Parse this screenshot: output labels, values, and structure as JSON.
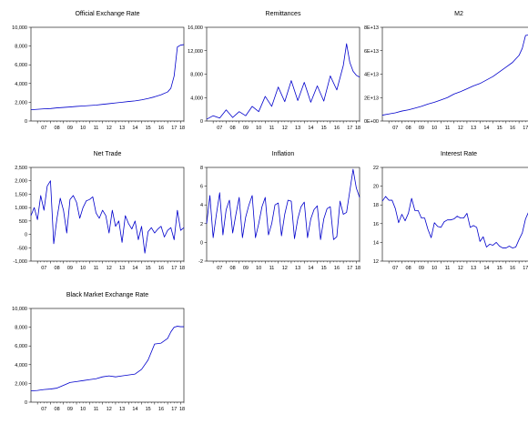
{
  "figure": {
    "x_tick_labels": [
      "07",
      "08",
      "09",
      "10",
      "11",
      "12",
      "13",
      "14",
      "15",
      "16",
      "17",
      "18"
    ],
    "line_color": "#0000cc"
  },
  "chart_data": [
    {
      "id": "official-exchange-rate",
      "type": "line",
      "title": "Official Exchange Rate",
      "xlabel": "",
      "ylabel": "",
      "x_range": [
        2006.5,
        2018.25
      ],
      "ylim": [
        0,
        10000
      ],
      "y_ticks": [
        0,
        2000,
        4000,
        6000,
        8000,
        10000
      ],
      "y_tick_labels": [
        "0",
        "2,000",
        "4,000",
        "6,000",
        "8,000",
        "10,000"
      ],
      "grid": false,
      "series": [
        {
          "x": [
            2006.5,
            2007.0,
            2007.5,
            2008.0,
            2008.5,
            2009.0,
            2009.5,
            2010.0,
            2010.5,
            2011.0,
            2011.5,
            2012.0,
            2012.5,
            2013.0,
            2013.5,
            2014.0,
            2014.5,
            2015.0,
            2015.5,
            2016.0,
            2016.5,
            2017.0,
            2017.25,
            2017.5,
            2017.75,
            2018.0,
            2018.25
          ],
          "y": [
            1200,
            1250,
            1300,
            1330,
            1400,
            1450,
            1500,
            1560,
            1600,
            1650,
            1700,
            1780,
            1850,
            1930,
            2000,
            2080,
            2150,
            2260,
            2400,
            2580,
            2800,
            3100,
            3500,
            4800,
            7900,
            8100,
            8150
          ]
        }
      ]
    },
    {
      "id": "remittances",
      "type": "line",
      "title": "Remittances",
      "xlabel": "",
      "ylabel": "",
      "x_range": [
        2006.5,
        2018.25
      ],
      "ylim": [
        0,
        16000
      ],
      "y_ticks": [
        0,
        4000,
        8000,
        12000,
        16000
      ],
      "y_tick_labels": [
        "0",
        "4,000",
        "8,000",
        "12,000",
        "16,000"
      ],
      "grid": false,
      "series": [
        {
          "x": [
            2006.5,
            2007.0,
            2007.5,
            2008.0,
            2008.5,
            2009.0,
            2009.5,
            2010.0,
            2010.5,
            2011.0,
            2011.5,
            2012.0,
            2012.5,
            2013.0,
            2013.5,
            2014.0,
            2014.5,
            2015.0,
            2015.5,
            2016.0,
            2016.5,
            2017.0,
            2017.25,
            2017.5,
            2017.75,
            2018.0,
            2018.25
          ],
          "y": [
            300,
            900,
            500,
            1900,
            600,
            1600,
            900,
            2500,
            1600,
            4200,
            2500,
            5800,
            3300,
            6900,
            3500,
            6600,
            3200,
            6000,
            3400,
            7700,
            5300,
            9500,
            13200,
            10000,
            8500,
            7800,
            7500
          ]
        }
      ]
    },
    {
      "id": "m2",
      "type": "line",
      "title": "M2",
      "xlabel": "",
      "ylabel": "",
      "x_range": [
        2006.5,
        2018.25
      ],
      "ylim": [
        0,
        80000000000000.0
      ],
      "y_ticks": [
        0,
        20000000000000.0,
        40000000000000.0,
        60000000000000.0,
        80000000000000.0
      ],
      "y_tick_labels": [
        "0E+00",
        "2E+13",
        "4E+13",
        "6E+13",
        "8E+13"
      ],
      "grid": false,
      "series": [
        {
          "x": [
            2006.5,
            2007.0,
            2007.5,
            2008.0,
            2008.5,
            2009.0,
            2009.5,
            2010.0,
            2010.5,
            2011.0,
            2011.5,
            2012.0,
            2012.5,
            2013.0,
            2013.5,
            2014.0,
            2014.5,
            2015.0,
            2015.5,
            2016.0,
            2016.5,
            2017.0,
            2017.25,
            2017.5,
            2017.75,
            2018.0,
            2018.25
          ],
          "y": [
            5000000000000.0,
            6000000000000.0,
            7000000000000.0,
            8500000000000.0,
            9500000000000.0,
            11000000000000.0,
            12500000000000.0,
            14500000000000.0,
            16000000000000.0,
            18000000000000.0,
            20000000000000.0,
            23000000000000.0,
            25000000000000.0,
            27500000000000.0,
            30000000000000.0,
            32000000000000.0,
            35000000000000.0,
            38000000000000.0,
            42000000000000.0,
            46000000000000.0,
            50000000000000.0,
            56000000000000.0,
            62000000000000.0,
            73000000000000.0,
            73500000000000.0,
            74000000000000.0,
            74000000000000.0
          ]
        }
      ]
    },
    {
      "id": "net-trade",
      "type": "line",
      "title": "Net Trade",
      "xlabel": "",
      "ylabel": "",
      "x_range": [
        2006.5,
        2018.25
      ],
      "ylim": [
        -1000,
        2500
      ],
      "y_ticks": [
        -1000,
        -500,
        0,
        500,
        1000,
        1500,
        2000,
        2500
      ],
      "y_tick_labels": [
        "-1,000",
        "-500",
        "0",
        "500",
        "1,000",
        "1,500",
        "2,000",
        "2,500"
      ],
      "grid": false,
      "series": [
        {
          "x": [
            2006.5,
            2006.75,
            2007.0,
            2007.25,
            2007.5,
            2007.75,
            2008.0,
            2008.25,
            2008.5,
            2008.75,
            2009.0,
            2009.25,
            2009.5,
            2009.75,
            2010.0,
            2010.25,
            2010.5,
            2010.75,
            2011.0,
            2011.25,
            2011.5,
            2011.75,
            2012.0,
            2012.25,
            2012.5,
            2012.75,
            2013.0,
            2013.25,
            2013.5,
            2013.75,
            2014.0,
            2014.25,
            2014.5,
            2014.75,
            2015.0,
            2015.25,
            2015.5,
            2015.75,
            2016.0,
            2016.25,
            2016.5,
            2016.75,
            2017.0,
            2017.25,
            2017.5,
            2017.75,
            2018.0,
            2018.25
          ],
          "y": [
            700,
            1000,
            550,
            1450,
            900,
            1800,
            2000,
            -350,
            600,
            1350,
            900,
            50,
            1300,
            1450,
            1200,
            600,
            1000,
            1250,
            1300,
            1400,
            800,
            600,
            900,
            700,
            50,
            900,
            300,
            500,
            -300,
            700,
            400,
            200,
            500,
            -200,
            300,
            -700,
            100,
            250,
            50,
            200,
            300,
            -100,
            150,
            250,
            -200,
            900,
            150,
            250
          ]
        }
      ]
    },
    {
      "id": "inflation",
      "type": "line",
      "title": "Inflation",
      "xlabel": "",
      "ylabel": "",
      "x_range": [
        2006.5,
        2018.25
      ],
      "ylim": [
        -2,
        8
      ],
      "y_ticks": [
        -2,
        0,
        2,
        4,
        6,
        8
      ],
      "y_tick_labels": [
        "-2",
        "0",
        "2",
        "4",
        "6",
        "8"
      ],
      "grid": false,
      "series": [
        {
          "x": [
            2006.5,
            2006.75,
            2007.0,
            2007.25,
            2007.5,
            2007.75,
            2008.0,
            2008.25,
            2008.5,
            2008.75,
            2009.0,
            2009.25,
            2009.5,
            2009.75,
            2010.0,
            2010.25,
            2010.5,
            2010.75,
            2011.0,
            2011.25,
            2011.5,
            2011.75,
            2012.0,
            2012.25,
            2012.5,
            2012.75,
            2013.0,
            2013.25,
            2013.5,
            2013.75,
            2014.0,
            2014.25,
            2014.5,
            2014.75,
            2015.0,
            2015.25,
            2015.5,
            2015.75,
            2016.0,
            2016.25,
            2016.5,
            2016.75,
            2017.0,
            2017.25,
            2017.5,
            2017.75,
            2018.0,
            2018.25
          ],
          "y": [
            2.0,
            5.0,
            0.5,
            3.0,
            5.3,
            0.8,
            3.5,
            4.5,
            1.0,
            3.0,
            4.8,
            0.5,
            2.7,
            4.0,
            5.0,
            0.5,
            2.0,
            3.8,
            4.8,
            0.8,
            2.0,
            4.0,
            4.2,
            0.7,
            3.0,
            4.5,
            4.4,
            0.4,
            2.5,
            3.8,
            4.3,
            0.5,
            2.5,
            3.5,
            3.9,
            0.3,
            2.5,
            3.6,
            3.8,
            0.3,
            0.6,
            4.4,
            3.0,
            3.2,
            5.5,
            7.8,
            5.8,
            4.8
          ]
        }
      ]
    },
    {
      "id": "interest-rate",
      "type": "line",
      "title": "Interest Rate",
      "xlabel": "",
      "ylabel": "",
      "x_range": [
        2006.5,
        2018.25
      ],
      "ylim": [
        12,
        22
      ],
      "y_ticks": [
        12,
        14,
        16,
        18,
        20,
        22
      ],
      "y_tick_labels": [
        "12",
        "14",
        "16",
        "18",
        "20",
        "22"
      ],
      "grid": false,
      "series": [
        {
          "x": [
            2006.5,
            2006.75,
            2007.0,
            2007.25,
            2007.5,
            2007.75,
            2008.0,
            2008.25,
            2008.5,
            2008.75,
            2009.0,
            2009.25,
            2009.5,
            2009.75,
            2010.0,
            2010.25,
            2010.5,
            2010.75,
            2011.0,
            2011.25,
            2011.5,
            2011.75,
            2012.0,
            2012.25,
            2012.5,
            2012.75,
            2013.0,
            2013.25,
            2013.5,
            2013.75,
            2014.0,
            2014.25,
            2014.5,
            2014.75,
            2015.0,
            2015.25,
            2015.5,
            2015.75,
            2016.0,
            2016.25,
            2016.5,
            2016.75,
            2017.0,
            2017.25,
            2017.5,
            2017.75,
            2018.0,
            2018.25
          ],
          "y": [
            18.4,
            18.9,
            18.5,
            18.5,
            17.6,
            16.1,
            17.0,
            16.3,
            17.1,
            18.7,
            17.4,
            17.4,
            16.6,
            16.6,
            15.4,
            14.5,
            16.1,
            15.7,
            15.6,
            16.2,
            16.4,
            16.4,
            16.5,
            16.8,
            16.6,
            16.6,
            17.1,
            15.6,
            15.8,
            15.6,
            14.1,
            14.6,
            13.5,
            13.8,
            13.7,
            14.0,
            13.6,
            13.4,
            13.4,
            13.6,
            13.4,
            13.5,
            14.3,
            15.0,
            16.5,
            17.3,
            18.5,
            20.1
          ]
        }
      ]
    },
    {
      "id": "black-market-exchange-rate",
      "type": "line",
      "title": "Black Market Exchange Rate",
      "xlabel": "",
      "ylabel": "",
      "x_range": [
        2006.5,
        2018.25
      ],
      "ylim": [
        0,
        10000
      ],
      "y_ticks": [
        0,
        2000,
        4000,
        6000,
        8000,
        10000
      ],
      "y_tick_labels": [
        "0",
        "2,000",
        "4,000",
        "6,000",
        "8,000",
        "10,000"
      ],
      "grid": false,
      "series": [
        {
          "x": [
            2006.5,
            2007.0,
            2007.5,
            2008.0,
            2008.5,
            2009.0,
            2009.5,
            2010.0,
            2010.5,
            2011.0,
            2011.5,
            2012.0,
            2012.5,
            2013.0,
            2013.5,
            2014.0,
            2014.5,
            2015.0,
            2015.5,
            2016.0,
            2016.5,
            2017.0,
            2017.25,
            2017.5,
            2017.75,
            2018.0,
            2018.25
          ],
          "y": [
            1200,
            1250,
            1350,
            1400,
            1500,
            1800,
            2100,
            2200,
            2300,
            2400,
            2500,
            2700,
            2800,
            2700,
            2800,
            2900,
            3000,
            3500,
            4500,
            6200,
            6300,
            6800,
            7500,
            8000,
            8100,
            8050,
            8050
          ]
        }
      ]
    }
  ]
}
